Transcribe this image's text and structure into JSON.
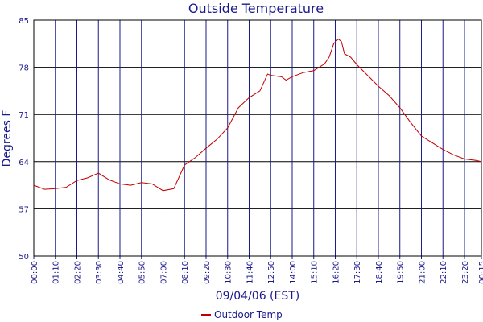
{
  "chart_data": {
    "type": "line",
    "title": "Outside Temperature",
    "x_label": "09/04/06 (EST)",
    "y_label": "Degrees F",
    "xlim": [
      0,
      1455
    ],
    "ylim": [
      50,
      85
    ],
    "xticks": [
      {
        "value": 0,
        "label": "00:00"
      },
      {
        "value": 70,
        "label": "01:10"
      },
      {
        "value": 140,
        "label": "02:20"
      },
      {
        "value": 210,
        "label": "03:30"
      },
      {
        "value": 280,
        "label": "04:40"
      },
      {
        "value": 350,
        "label": "05:50"
      },
      {
        "value": 420,
        "label": "07:00"
      },
      {
        "value": 490,
        "label": "08:10"
      },
      {
        "value": 560,
        "label": "09:20"
      },
      {
        "value": 630,
        "label": "10:30"
      },
      {
        "value": 700,
        "label": "11:40"
      },
      {
        "value": 770,
        "label": "12:50"
      },
      {
        "value": 840,
        "label": "14:00"
      },
      {
        "value": 910,
        "label": "15:10"
      },
      {
        "value": 980,
        "label": "16:20"
      },
      {
        "value": 1050,
        "label": "17:30"
      },
      {
        "value": 1120,
        "label": "18:40"
      },
      {
        "value": 1190,
        "label": "19:50"
      },
      {
        "value": 1260,
        "label": "21:00"
      },
      {
        "value": 1330,
        "label": "22:10"
      },
      {
        "value": 1400,
        "label": "23:20"
      },
      {
        "value": 1455,
        "label": "00:15"
      }
    ],
    "yticks": [
      50,
      57,
      64,
      71,
      78,
      85
    ],
    "grid": true,
    "x": [
      0,
      35,
      70,
      105,
      140,
      175,
      210,
      245,
      280,
      315,
      350,
      385,
      420,
      455,
      490,
      525,
      560,
      595,
      630,
      665,
      700,
      735,
      760,
      770,
      805,
      820,
      840,
      875,
      910,
      945,
      960,
      975,
      990,
      1000,
      1010,
      1030,
      1050,
      1085,
      1120,
      1155,
      1190,
      1225,
      1260,
      1295,
      1330,
      1365,
      1400,
      1435,
      1455
    ],
    "series": [
      {
        "name": "Outdoor Temp",
        "color": "#c00000",
        "values": [
          60.5,
          59.9,
          60.0,
          60.2,
          61.2,
          61.6,
          62.3,
          61.3,
          60.7,
          60.5,
          60.9,
          60.7,
          59.7,
          60.0,
          63.5,
          64.6,
          66.0,
          67.3,
          69.0,
          72.0,
          73.5,
          74.5,
          77.0,
          76.8,
          76.6,
          76.1,
          76.6,
          77.2,
          77.5,
          78.5,
          79.5,
          81.5,
          82.2,
          81.8,
          80.0,
          79.5,
          78.4,
          76.8,
          75.2,
          73.8,
          72.0,
          69.8,
          67.8,
          66.8,
          65.8,
          65.0,
          64.4,
          64.2,
          64.0
        ]
      }
    ]
  }
}
